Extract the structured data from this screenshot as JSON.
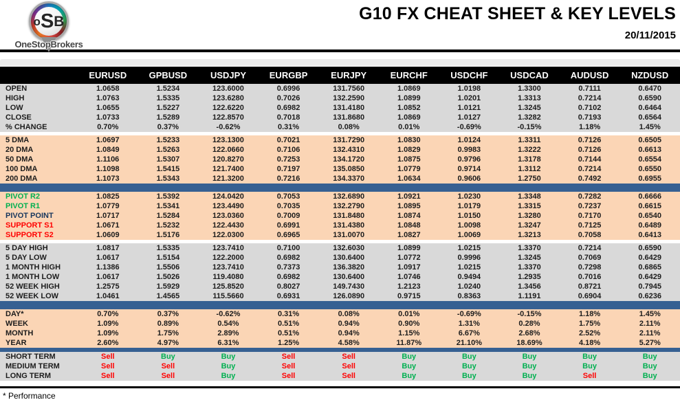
{
  "colors": {
    "bar": "#366092",
    "gray": "#D9D9D9",
    "peach": "#FBD5B5",
    "buy": "#00B050",
    "sell": "#FF0000",
    "navy": "#17365D"
  },
  "header": {
    "title": "G10 FX CHEAT SHEET & KEY LEVELS",
    "date": "20/11/2015",
    "logo": {
      "letters": [
        "o",
        "S",
        "B"
      ],
      "brand": "OneStopBrokers"
    }
  },
  "footnote": "* Performance",
  "table": {
    "columns": [
      "EURUSD",
      "GPBUSD",
      "USDJPY",
      "EURGBP",
      "EURJPY",
      "EURCHF",
      "USDCHF",
      "USDCAD",
      "AUDUSD",
      "NZDUSD"
    ],
    "sections": [
      {
        "name": "ohlc",
        "bg": "gray",
        "after": "gap",
        "rows": [
          {
            "label": "OPEN",
            "values": [
              "1.0658",
              "1.5234",
              "123.6000",
              "0.6996",
              "131.7560",
              "1.0869",
              "1.0198",
              "1.3300",
              "0.7111",
              "0.6470"
            ]
          },
          {
            "label": "HIGH",
            "values": [
              "1.0763",
              "1.5335",
              "123.6280",
              "0.7026",
              "132.2590",
              "1.0899",
              "1.0201",
              "1.3313",
              "0.7214",
              "0.6590"
            ]
          },
          {
            "label": "LOW",
            "values": [
              "1.0655",
              "1.5227",
              "122.6220",
              "0.6982",
              "131.4180",
              "1.0852",
              "1.0121",
              "1.3245",
              "0.7102",
              "0.6464"
            ]
          },
          {
            "label": "CLOSE",
            "values": [
              "1.0733",
              "1.5289",
              "122.8570",
              "0.7018",
              "131.8680",
              "1.0869",
              "1.0127",
              "1.3282",
              "0.7193",
              "0.6564"
            ]
          },
          {
            "label": "% CHANGE",
            "values": [
              "0.70%",
              "0.37%",
              "-0.62%",
              "0.31%",
              "0.08%",
              "0.01%",
              "-0.69%",
              "-0.15%",
              "1.18%",
              "1.45%"
            ]
          }
        ]
      },
      {
        "name": "dma",
        "bg": "peach",
        "after": "bar",
        "rows": [
          {
            "label": "5 DMA",
            "values": [
              "1.0697",
              "1.5233",
              "123.1300",
              "0.7021",
              "131.7290",
              "1.0830",
              "1.0124",
              "1.3311",
              "0.7126",
              "0.6505"
            ]
          },
          {
            "label": "20 DMA",
            "values": [
              "1.0849",
              "1.5263",
              "122.0660",
              "0.7106",
              "132.4310",
              "1.0829",
              "0.9983",
              "1.3222",
              "0.7126",
              "0.6613"
            ]
          },
          {
            "label": "50 DMA",
            "values": [
              "1.1106",
              "1.5307",
              "120.8270",
              "0.7253",
              "134.1720",
              "1.0875",
              "0.9796",
              "1.3178",
              "0.7144",
              "0.6554"
            ]
          },
          {
            "label": "100 DMA",
            "values": [
              "1.1098",
              "1.5415",
              "121.7400",
              "0.7197",
              "135.0850",
              "1.0779",
              "0.9714",
              "1.3112",
              "0.7214",
              "0.6550"
            ]
          },
          {
            "label": "200 DMA",
            "values": [
              "1.1073",
              "1.5343",
              "121.3200",
              "0.7216",
              "134.3370",
              "1.0634",
              "0.9606",
              "1.2750",
              "0.7492",
              "0.6955"
            ]
          }
        ]
      },
      {
        "name": "pivots",
        "bg": "peach",
        "after": "gap",
        "rows": [
          {
            "label": "PIVOT R2",
            "label_color": "green",
            "values": [
              "1.0825",
              "1.5392",
              "124.0420",
              "0.7053",
              "132.6890",
              "1.0921",
              "1.0230",
              "1.3348",
              "0.7282",
              "0.6666"
            ]
          },
          {
            "label": "PIVOT R1",
            "label_color": "green",
            "values": [
              "1.0779",
              "1.5341",
              "123.4490",
              "0.7035",
              "132.2790",
              "1.0895",
              "1.0179",
              "1.3315",
              "0.7237",
              "0.6615"
            ]
          },
          {
            "label": "PIVOT POINT",
            "label_color": "navy",
            "values": [
              "1.0717",
              "1.5284",
              "123.0360",
              "0.7009",
              "131.8480",
              "1.0874",
              "1.0150",
              "1.3280",
              "0.7170",
              "0.6540"
            ]
          },
          {
            "label": "SUPPORT S1",
            "label_color": "red",
            "values": [
              "1.0671",
              "1.5232",
              "122.4430",
              "0.6991",
              "131.4380",
              "1.0848",
              "1.0098",
              "1.3247",
              "0.7125",
              "0.6489"
            ]
          },
          {
            "label": "SUPPORT S2",
            "label_color": "red",
            "values": [
              "1.0609",
              "1.5176",
              "122.0300",
              "0.6965",
              "131.0070",
              "1.0827",
              "1.0069",
              "1.3213",
              "0.7058",
              "0.6413"
            ]
          }
        ]
      },
      {
        "name": "ranges",
        "bg": "gray",
        "after": "bar",
        "rows": [
          {
            "label": "5 DAY HIGH",
            "values": [
              "1.0817",
              "1.5335",
              "123.7410",
              "0.7100",
              "132.6030",
              "1.0899",
              "1.0215",
              "1.3370",
              "0.7214",
              "0.6590"
            ]
          },
          {
            "label": "5 DAY LOW",
            "values": [
              "1.0617",
              "1.5154",
              "122.2000",
              "0.6982",
              "130.6400",
              "1.0772",
              "0.9996",
              "1.3245",
              "0.7069",
              "0.6429"
            ]
          },
          {
            "label": "1 MONTH HIGH",
            "values": [
              "1.1386",
              "1.5506",
              "123.7410",
              "0.7373",
              "136.3820",
              "1.0917",
              "1.0215",
              "1.3370",
              "0.7298",
              "0.6865"
            ]
          },
          {
            "label": "1 MONTH LOW",
            "values": [
              "1.0617",
              "1.5026",
              "119.4080",
              "0.6982",
              "130.6400",
              "1.0746",
              "0.9494",
              "1.2935",
              "0.7016",
              "0.6429"
            ]
          },
          {
            "label": "52 WEEK HIGH",
            "values": [
              "1.2575",
              "1.5929",
              "125.8520",
              "0.8027",
              "149.7430",
              "1.2123",
              "1.0240",
              "1.3456",
              "0.8721",
              "0.7945"
            ]
          },
          {
            "label": "52 WEEK LOW",
            "values": [
              "1.0461",
              "1.4565",
              "115.5660",
              "0.6931",
              "126.0890",
              "0.9715",
              "0.8363",
              "1.1191",
              "0.6904",
              "0.6236"
            ]
          }
        ]
      },
      {
        "name": "performance",
        "bg": "peach",
        "after": "bar-thin",
        "rows": [
          {
            "label": "DAY*",
            "values": [
              "0.70%",
              "0.37%",
              "-0.62%",
              "0.31%",
              "0.08%",
              "0.01%",
              "-0.69%",
              "-0.15%",
              "1.18%",
              "1.45%"
            ]
          },
          {
            "label": "WEEK",
            "values": [
              "1.09%",
              "0.89%",
              "0.54%",
              "0.51%",
              "0.94%",
              "0.90%",
              "1.31%",
              "0.28%",
              "1.75%",
              "2.11%"
            ]
          },
          {
            "label": "MONTH",
            "values": [
              "1.09%",
              "1.75%",
              "2.89%",
              "0.51%",
              "0.94%",
              "1.15%",
              "6.67%",
              "2.68%",
              "2.52%",
              "2.11%"
            ]
          },
          {
            "label": "YEAR",
            "values": [
              "2.60%",
              "4.97%",
              "6.31%",
              "1.25%",
              "4.58%",
              "11.87%",
              "21.10%",
              "18.69%",
              "4.18%",
              "5.27%"
            ]
          }
        ]
      },
      {
        "name": "signals",
        "bg": "gray",
        "after": null,
        "rows": [
          {
            "label": "SHORT TERM",
            "signals": [
              "Sell",
              "Buy",
              "Buy",
              "Sell",
              "Sell",
              "Buy",
              "Buy",
              "Buy",
              "Buy",
              "Buy"
            ]
          },
          {
            "label": "MEDIUM TERM",
            "signals": [
              "Sell",
              "Sell",
              "Buy",
              "Sell",
              "Sell",
              "Buy",
              "Buy",
              "Buy",
              "Buy",
              "Buy"
            ]
          },
          {
            "label": "LONG TERM",
            "signals": [
              "Sell",
              "Sell",
              "Buy",
              "Sell",
              "Sell",
              "Buy",
              "Buy",
              "Buy",
              "Sell",
              "Buy"
            ]
          }
        ]
      }
    ]
  }
}
